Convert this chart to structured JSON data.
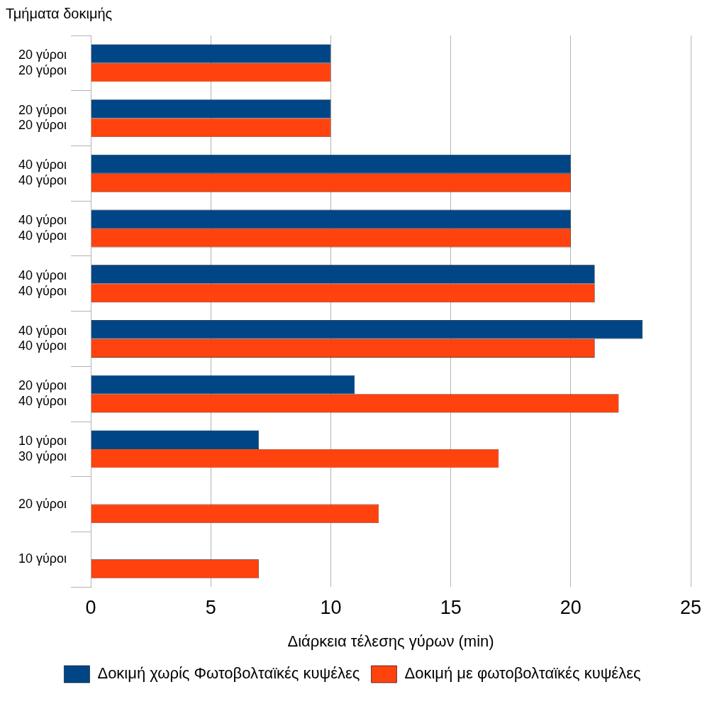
{
  "chart_data": {
    "type": "bar",
    "orientation": "horizontal",
    "ylabel": "Τμήματα δοκιμής",
    "xlabel": "Διάρκεια τέλεσης γύρων (min)",
    "categories": [
      "20 γύροι\n20 γύροι",
      "20 γύροι\n20 γύροι",
      "40 γύροι\n40 γύροι",
      "40 γύροι\n40 γύροι",
      "40 γύροι\n40 γύροι",
      "40 γύροι\n40 γύροι",
      "20 γύροι\n40 γύροι",
      "10 γύροι\n30 γύροι",
      "20 γύροι",
      "10 γύροι"
    ],
    "series": [
      {
        "name": "Δοκιμή χωρίς Φωτοβολταϊκές κυψέλες",
        "color": "#004586",
        "values": [
          10,
          10,
          20,
          20,
          21,
          23,
          11,
          7,
          null,
          null
        ]
      },
      {
        "name": "Δοκιμή με φωτοβολταϊκές κυψέλες",
        "color": "#ff420e",
        "values": [
          10,
          10,
          20,
          20,
          21,
          21,
          22,
          17,
          12,
          7
        ]
      }
    ],
    "xlim": [
      0,
      25
    ],
    "xticks": [
      0,
      5,
      10,
      15,
      20,
      25
    ],
    "grid": "x",
    "legend": "bottom"
  }
}
